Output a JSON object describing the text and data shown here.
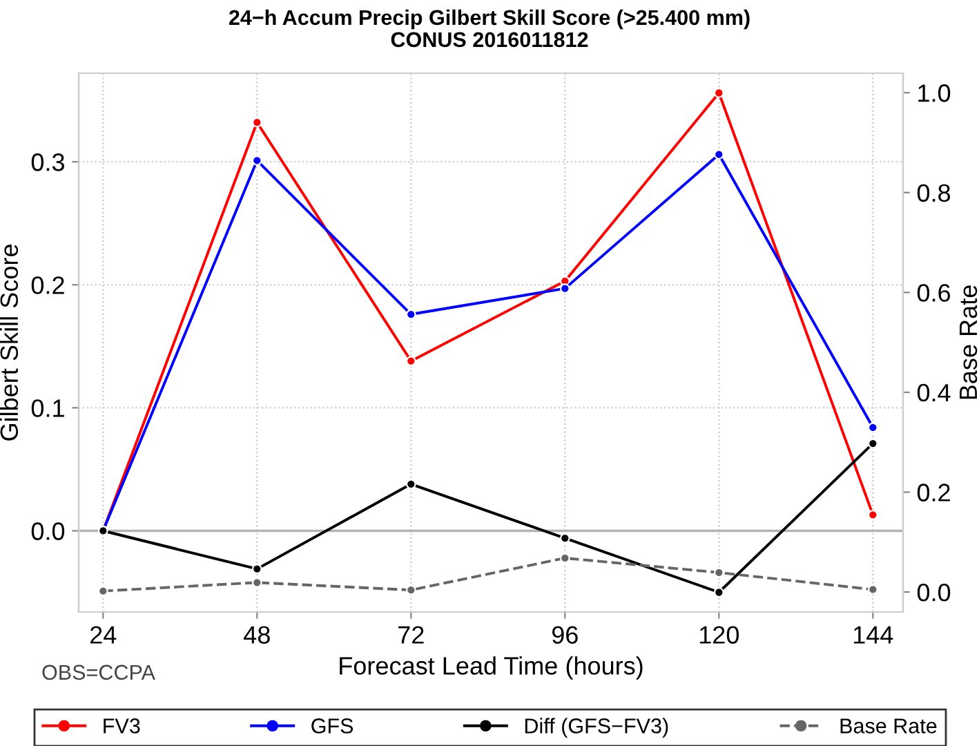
{
  "chart_data": {
    "type": "line",
    "title": "24−h Accum Precip Gilbert Skill Score (>25.400 mm)",
    "subtitle": "CONUS 2016011812",
    "xlabel": "Forecast Lead Time (hours)",
    "ylabel": "Gilbert Skill Score",
    "y2label": "Base Rate",
    "x": [
      24,
      48,
      72,
      96,
      120,
      144
    ],
    "series": [
      {
        "name": "FV3",
        "color": "#ff0000",
        "values": [
          0.0,
          0.332,
          0.138,
          0.203,
          0.356,
          0.013
        ]
      },
      {
        "name": "GFS",
        "color": "#0000ff",
        "values": [
          0.0,
          0.301,
          0.176,
          0.197,
          0.306,
          0.084
        ]
      },
      {
        "name": "Diff (GFS−FV3)",
        "color": "#000000",
        "values": [
          0.0,
          -0.031,
          0.038,
          -0.006,
          -0.05,
          0.071
        ]
      },
      {
        "name": "Base Rate",
        "color": "#666666",
        "axis": "y2",
        "line_style": "dashed",
        "values": [
          0.002,
          0.019,
          0.004,
          0.068,
          0.039,
          0.005
        ]
      }
    ],
    "xlim": [
      20.2,
      148.7
    ],
    "xticks": [
      24,
      48,
      72,
      96,
      120,
      144
    ],
    "ylim": [
      -0.066,
      0.372
    ],
    "yticks": [
      {
        "value": 0,
        "label": "0.0"
      },
      0.1,
      0.2,
      0.3
    ],
    "y2lim": [
      -0.04,
      1.039
    ],
    "y2ticks": [
      {
        "value": 0,
        "label": "0.0"
      },
      0.2,
      0.4,
      0.6,
      0.8,
      {
        "value": 1,
        "label": "1.0"
      }
    ],
    "ref_lines": [
      {
        "axis": "y",
        "value": 0.0,
        "color": "#b3b3b3",
        "line_style": "solid"
      }
    ],
    "annotations": [
      "OBS=CCPA"
    ],
    "grid": true,
    "legend": "bottom",
    "marker": "circle",
    "line_style": "solid"
  }
}
